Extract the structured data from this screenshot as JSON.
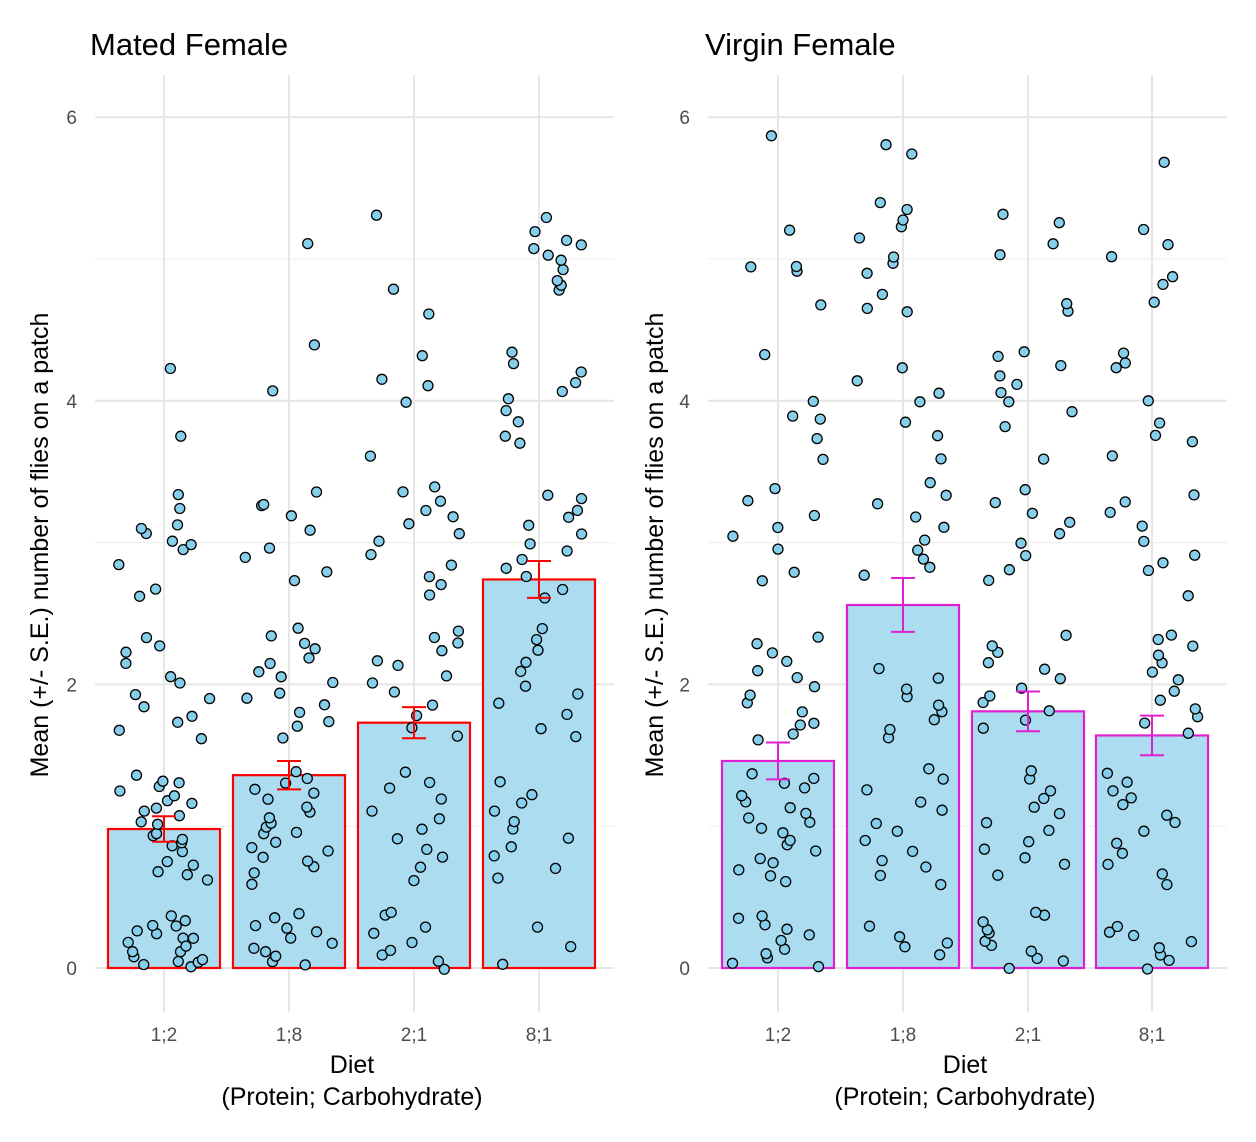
{
  "chart_data": [
    {
      "type": "bar",
      "title": "Mated Female",
      "xlabel_line1": "Diet",
      "xlabel_line2": "(Protein; Carbohydrate)",
      "ylabel": "Mean (+/- S.E.) number of flies on a patch",
      "categories": [
        "1;2",
        "1;8",
        "2;1",
        "8;1"
      ],
      "values": [
        0.98,
        1.36,
        1.73,
        2.74
      ],
      "se": [
        0.09,
        0.1,
        0.11,
        0.13
      ],
      "ylim": [
        0,
        6.2
      ],
      "yticks": [
        "0",
        "2",
        "4",
        "6"
      ],
      "bar_fill": "#acdcf0",
      "bar_outline": "#ff0000",
      "errorbar_color": "#ff0000",
      "point_fill": "#87ceeb",
      "point_outline": "#000000",
      "grid": true,
      "points": [
        [
          0.04,
          0.31,
          0.12,
          0.09,
          0.22,
          0.15,
          0.0,
          0.36,
          0.27,
          0.05,
          0.18,
          0.33,
          0.02,
          0.07,
          0.24,
          0.2,
          0.11,
          0.3,
          0.62,
          0.65,
          0.69,
          0.72,
          0.76,
          0.81,
          0.85,
          0.88,
          0.9,
          0.93,
          0.96,
          1.0,
          1.02,
          1.06,
          1.1,
          1.12,
          1.16,
          1.19,
          1.22,
          1.25,
          1.28,
          1.3,
          1.33,
          1.36,
          1.62,
          1.68,
          1.73,
          1.78,
          1.85,
          1.9,
          1.93,
          2.02,
          2.06,
          2.16,
          2.22,
          2.28,
          2.34,
          2.63,
          2.67,
          2.84,
          2.96,
          3.0,
          3.02,
          3.05,
          3.1,
          3.13,
          3.24,
          3.35,
          3.74,
          4.22
        ],
        [
          0.02,
          0.05,
          0.08,
          0.11,
          0.14,
          0.18,
          0.22,
          0.25,
          0.28,
          0.31,
          0.34,
          0.38,
          0.58,
          0.66,
          0.72,
          0.75,
          0.78,
          0.82,
          0.86,
          0.9,
          0.94,
          0.97,
          1.0,
          1.03,
          1.06,
          1.1,
          1.14,
          1.18,
          1.22,
          1.26,
          1.3,
          1.34,
          1.38,
          1.62,
          1.7,
          1.75,
          1.8,
          1.85,
          1.9,
          1.95,
          2.0,
          2.05,
          2.1,
          2.16,
          2.2,
          2.25,
          2.3,
          2.35,
          2.4,
          2.72,
          2.8,
          2.9,
          2.97,
          3.1,
          3.2,
          3.25,
          3.28,
          3.35,
          4.08,
          4.4,
          5.1
        ],
        [
          0.0,
          0.04,
          0.08,
          0.12,
          0.18,
          0.24,
          0.3,
          0.36,
          0.4,
          0.62,
          0.7,
          0.78,
          0.84,
          0.9,
          0.98,
          1.05,
          1.12,
          1.2,
          1.26,
          1.32,
          1.38,
          1.64,
          1.7,
          1.78,
          1.86,
          1.94,
          2.0,
          2.06,
          2.12,
          2.18,
          2.24,
          2.3,
          2.34,
          2.38,
          2.62,
          2.7,
          2.76,
          2.84,
          2.92,
          3.0,
          3.06,
          3.12,
          3.18,
          3.24,
          3.3,
          3.35,
          3.38,
          3.62,
          4.0,
          4.1,
          4.14,
          4.32,
          4.6,
          4.78,
          5.3
        ],
        [
          0.02,
          0.14,
          0.3,
          0.64,
          0.7,
          0.78,
          0.86,
          0.92,
          0.98,
          1.04,
          1.1,
          1.16,
          1.22,
          1.3,
          1.62,
          1.7,
          1.78,
          1.86,
          1.94,
          2.0,
          2.08,
          2.16,
          2.24,
          2.32,
          2.38,
          2.62,
          2.68,
          2.76,
          2.82,
          2.88,
          2.94,
          3.0,
          3.06,
          3.12,
          3.18,
          3.24,
          3.3,
          3.34,
          3.7,
          3.76,
          3.84,
          3.94,
          4.0,
          4.06,
          4.12,
          4.2,
          4.26,
          4.34,
          4.78,
          4.82,
          4.86,
          4.92,
          4.98,
          5.02,
          5.06,
          5.1,
          5.14,
          5.2,
          5.28
        ]
      ]
    },
    {
      "type": "bar",
      "title": "Virgin Female",
      "xlabel_line1": "Diet",
      "xlabel_line2": "(Protein; Carbohydrate)",
      "ylabel": "Mean (+/- S.E.) number of flies on a patch",
      "categories": [
        "1;2",
        "1;8",
        "2;1",
        "8;1"
      ],
      "values": [
        1.46,
        2.56,
        1.81,
        1.64
      ],
      "se": [
        0.13,
        0.19,
        0.14,
        0.14
      ],
      "ylim": [
        0,
        6.2
      ],
      "yticks": [
        "0",
        "2",
        "4",
        "6"
      ],
      "bar_fill": "#acdcf0",
      "bar_outline": "#e020d0",
      "errorbar_color": "#e020d0",
      "point_fill": "#87ceeb",
      "point_outline": "#000000",
      "grid": true,
      "points": [
        [
          0.0,
          0.03,
          0.06,
          0.1,
          0.14,
          0.18,
          0.22,
          0.26,
          0.3,
          0.34,
          0.38,
          0.62,
          0.66,
          0.7,
          0.74,
          0.78,
          0.82,
          0.86,
          0.9,
          0.94,
          0.98,
          1.02,
          1.06,
          1.1,
          1.14,
          1.18,
          1.22,
          1.26,
          1.3,
          1.34,
          1.38,
          1.62,
          1.66,
          1.7,
          1.74,
          1.8,
          1.86,
          1.92,
          1.98,
          2.04,
          2.1,
          2.16,
          2.22,
          2.28,
          2.34,
          2.72,
          2.8,
          2.96,
          3.04,
          3.12,
          3.2,
          3.3,
          3.38,
          3.6,
          3.72,
          3.86,
          3.9,
          4.0,
          4.32,
          4.68,
          4.92,
          4.94,
          4.96,
          5.2,
          5.88
        ],
        [
          0.1,
          0.14,
          0.18,
          0.22,
          0.3,
          0.6,
          0.66,
          0.7,
          0.76,
          0.82,
          0.9,
          0.96,
          1.02,
          1.1,
          1.18,
          1.26,
          1.34,
          1.4,
          1.62,
          1.68,
          1.74,
          1.8,
          1.86,
          1.92,
          1.98,
          2.04,
          2.1,
          2.76,
          2.82,
          2.88,
          2.94,
          3.02,
          3.1,
          3.18,
          3.26,
          3.34,
          3.42,
          3.6,
          3.76,
          3.86,
          4.0,
          4.04,
          4.14,
          4.22,
          4.62,
          4.66,
          4.76,
          4.9,
          4.96,
          5.02,
          5.14,
          5.22,
          5.28,
          5.34,
          5.4,
          5.74,
          5.8
        ],
        [
          0.0,
          0.04,
          0.08,
          0.12,
          0.16,
          0.2,
          0.24,
          0.28,
          0.32,
          0.36,
          0.4,
          0.66,
          0.72,
          0.78,
          0.84,
          0.9,
          0.96,
          1.02,
          1.08,
          1.14,
          1.2,
          1.26,
          1.32,
          1.38,
          1.68,
          1.74,
          1.8,
          1.86,
          1.92,
          1.98,
          2.04,
          2.1,
          2.16,
          2.22,
          2.28,
          2.34,
          2.72,
          2.82,
          2.9,
          3.0,
          3.06,
          3.14,
          3.2,
          3.28,
          3.36,
          3.6,
          3.82,
          3.92,
          4.0,
          4.06,
          4.12,
          4.18,
          4.24,
          4.3,
          4.34,
          4.64,
          4.68,
          5.02,
          5.12,
          5.26,
          5.32
        ],
        [
          0.0,
          0.04,
          0.1,
          0.14,
          0.18,
          0.22,
          0.26,
          0.3,
          0.6,
          0.66,
          0.72,
          0.8,
          0.88,
          0.96,
          1.02,
          1.08,
          1.14,
          1.2,
          1.26,
          1.32,
          1.36,
          1.66,
          1.72,
          1.78,
          1.84,
          1.9,
          1.96,
          2.02,
          2.08,
          2.14,
          2.2,
          2.26,
          2.32,
          2.36,
          2.62,
          2.8,
          2.86,
          2.92,
          3.0,
          3.12,
          3.22,
          3.3,
          3.34,
          3.62,
          3.7,
          3.76,
          3.84,
          4.0,
          4.22,
          4.28,
          4.34,
          4.7,
          4.82,
          4.88,
          5.02,
          5.1,
          5.22,
          5.68
        ]
      ]
    }
  ]
}
